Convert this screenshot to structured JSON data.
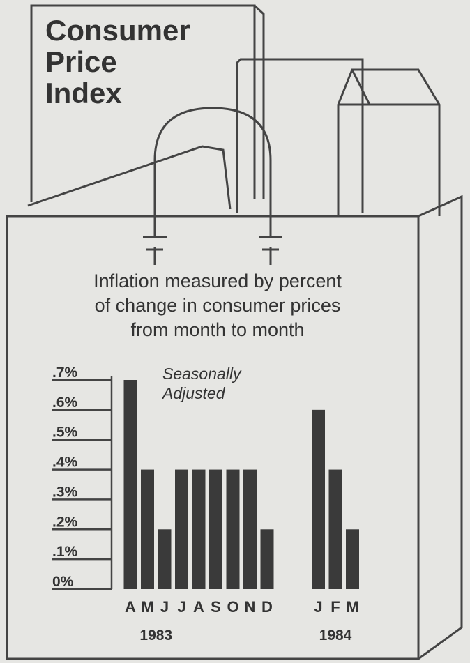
{
  "chart_data": {
    "type": "bar",
    "box_label": [
      "Consumer",
      "Price",
      "Index"
    ],
    "title": [
      "Inflation measured by percent",
      "of change in consumer prices",
      "from month to month"
    ],
    "annotation": [
      "Seasonally",
      "Adjusted"
    ],
    "categories": [
      "A",
      "M",
      "J",
      "J",
      "A",
      "S",
      "O",
      "N",
      "D",
      null,
      null,
      "J",
      "F",
      "M"
    ],
    "values": [
      0.7,
      0.4,
      0.2,
      0.4,
      0.4,
      0.4,
      0.4,
      0.4,
      0.2,
      null,
      null,
      0.6,
      0.4,
      0.2
    ],
    "x_group_labels": [
      "1983",
      "1984"
    ],
    "color": "#3a3a3a",
    "ylim": [
      0,
      0.7
    ],
    "yticks": [
      {
        "value": 0,
        "label": "0%"
      },
      {
        "value": 0.1,
        "label": ".1%"
      },
      {
        "value": 0.2,
        "label": ".2%"
      },
      {
        "value": 0.3,
        "label": ".3%"
      },
      {
        "value": 0.4,
        "label": ".4%"
      },
      {
        "value": 0.5,
        "label": ".5%"
      },
      {
        "value": 0.6,
        "label": ".6%"
      },
      {
        "value": 0.7,
        "label": ".7%"
      }
    ],
    "grid": true
  }
}
